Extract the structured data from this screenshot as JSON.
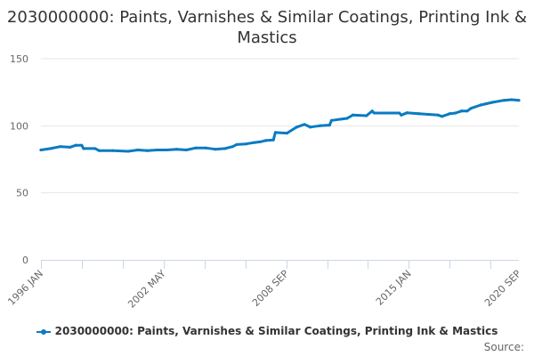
{
  "chart_data": {
    "type": "line",
    "title": "2030000000: Paints, Varnishes & Similar Coatings, Printing Ink & Mastics",
    "xlabel": "",
    "ylabel": "",
    "ylim": [
      0,
      150
    ],
    "yticks": [
      "0",
      "50",
      "100",
      "150"
    ],
    "xrange": [
      1996.0,
      2020.67
    ],
    "xtick_labels": [
      {
        "label": "1996 JAN",
        "t": 1996.0
      },
      {
        "label": "2002 MAY",
        "t": 2002.33
      },
      {
        "label": "2008 SEP",
        "t": 2008.67
      },
      {
        "label": "2015 JAN",
        "t": 2015.0
      },
      {
        "label": "2020 SEP",
        "t": 2020.67
      }
    ],
    "grid": true,
    "legend_position": "bottom",
    "series": [
      {
        "name": "2030000000: Paints, Varnishes & Similar Coatings, Printing Ink & Mastics",
        "color": "#0a7bc2",
        "points": [
          [
            1996.0,
            82
          ],
          [
            1996.5,
            83
          ],
          [
            1997.0,
            84.5
          ],
          [
            1997.5,
            84
          ],
          [
            1997.8,
            85.5
          ],
          [
            1998.1,
            85.5
          ],
          [
            1998.2,
            83
          ],
          [
            1998.8,
            83
          ],
          [
            1999.0,
            81.5
          ],
          [
            1999.7,
            81.5
          ],
          [
            2000.5,
            81
          ],
          [
            2001.0,
            82
          ],
          [
            2001.5,
            81.5
          ],
          [
            2002.0,
            82
          ],
          [
            2002.5,
            82
          ],
          [
            2003.0,
            82.5
          ],
          [
            2003.5,
            82
          ],
          [
            2004.0,
            83.5
          ],
          [
            2004.5,
            83.5
          ],
          [
            2005.0,
            82.5
          ],
          [
            2005.5,
            83
          ],
          [
            2005.9,
            84.5
          ],
          [
            2006.1,
            86
          ],
          [
            2006.6,
            86.5
          ],
          [
            2007.0,
            87.5
          ],
          [
            2007.3,
            88
          ],
          [
            2007.6,
            89
          ],
          [
            2008.0,
            89.5
          ],
          [
            2008.1,
            95
          ],
          [
            2008.7,
            94.5
          ],
          [
            2009.2,
            99
          ],
          [
            2009.6,
            101
          ],
          [
            2009.9,
            99
          ],
          [
            2010.4,
            100
          ],
          [
            2010.9,
            100.5
          ],
          [
            2011.0,
            104
          ],
          [
            2011.8,
            105.5
          ],
          [
            2012.1,
            108
          ],
          [
            2012.8,
            107.5
          ],
          [
            2013.1,
            111
          ],
          [
            2013.2,
            109.5
          ],
          [
            2014.0,
            109.5
          ],
          [
            2014.5,
            109.5
          ],
          [
            2014.6,
            108
          ],
          [
            2014.9,
            109.7
          ],
          [
            2015.5,
            109
          ],
          [
            2016.0,
            108.5
          ],
          [
            2016.5,
            108
          ],
          [
            2016.7,
            107
          ],
          [
            2017.1,
            109
          ],
          [
            2017.4,
            109.5
          ],
          [
            2017.7,
            111
          ],
          [
            2018.0,
            111
          ],
          [
            2018.2,
            113
          ],
          [
            2018.7,
            115.5
          ],
          [
            2019.0,
            116.5
          ],
          [
            2019.3,
            117.5
          ],
          [
            2019.9,
            119
          ],
          [
            2020.3,
            119.5
          ],
          [
            2020.67,
            119
          ]
        ]
      }
    ]
  },
  "source_label": "Source:"
}
